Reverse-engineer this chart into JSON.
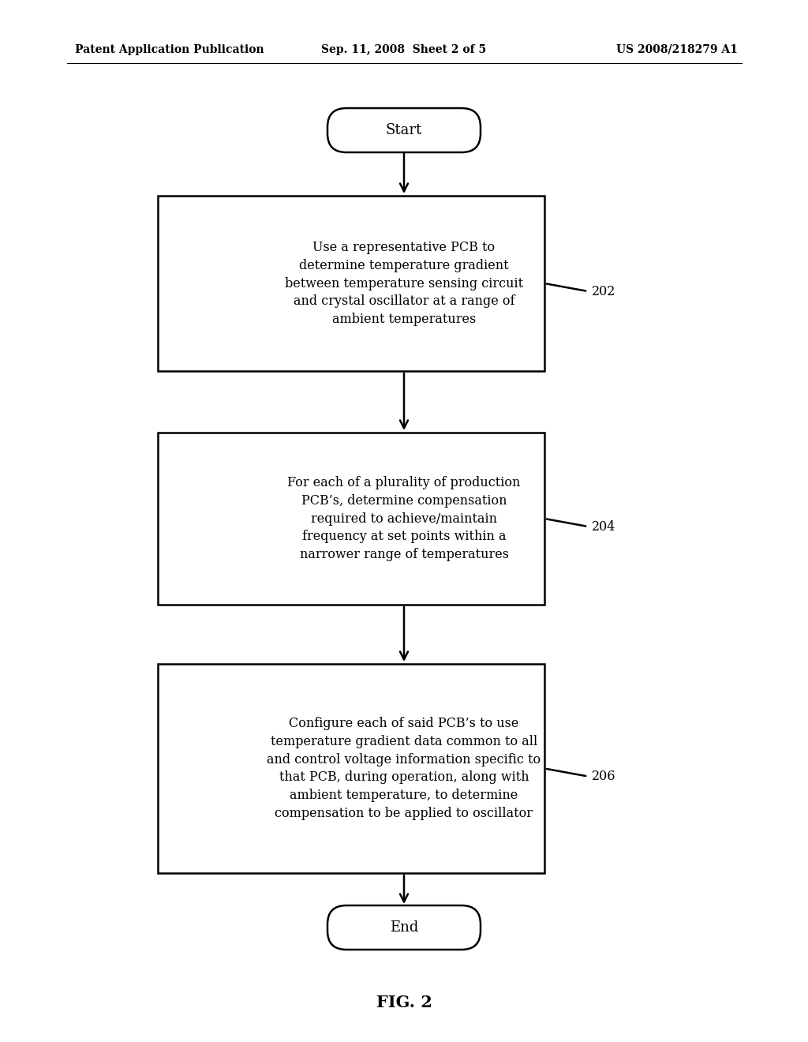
{
  "background_color": "#ffffff",
  "header_left": "Patent Application Publication",
  "header_center": "Sep. 11, 2008  Sheet 2 of 5",
  "header_right": "US 2008/218279 A1",
  "header_fontsize": 10,
  "footer_label": "FIG. 2",
  "footer_fontsize": 15,
  "start_label": "Start",
  "end_label": "End",
  "box1_text": "Use a representative PCB to\ndetermine temperature gradient\nbetween temperature sensing circuit\nand crystal oscillator at a range of\nambient temperatures",
  "box1_label": "202",
  "box2_text": "For each of a plurality of production\nPCB’s, determine compensation\nrequired to achieve/maintain\nfrequency at set points within a\nnarrower range of temperatures",
  "box2_label": "204",
  "box3_text": "Configure each of said PCB’s to use\ntemperature gradient data common to all\nand control voltage information specific to\nthat PCB, during operation, along with\nambient temperature, to determine\ncompensation to be applied to oscillator",
  "box3_label": "206",
  "text_fontsize": 11.5,
  "label_fontsize": 11.5,
  "line_color": "#000000",
  "text_color": "#000000",
  "line_width": 1.8
}
